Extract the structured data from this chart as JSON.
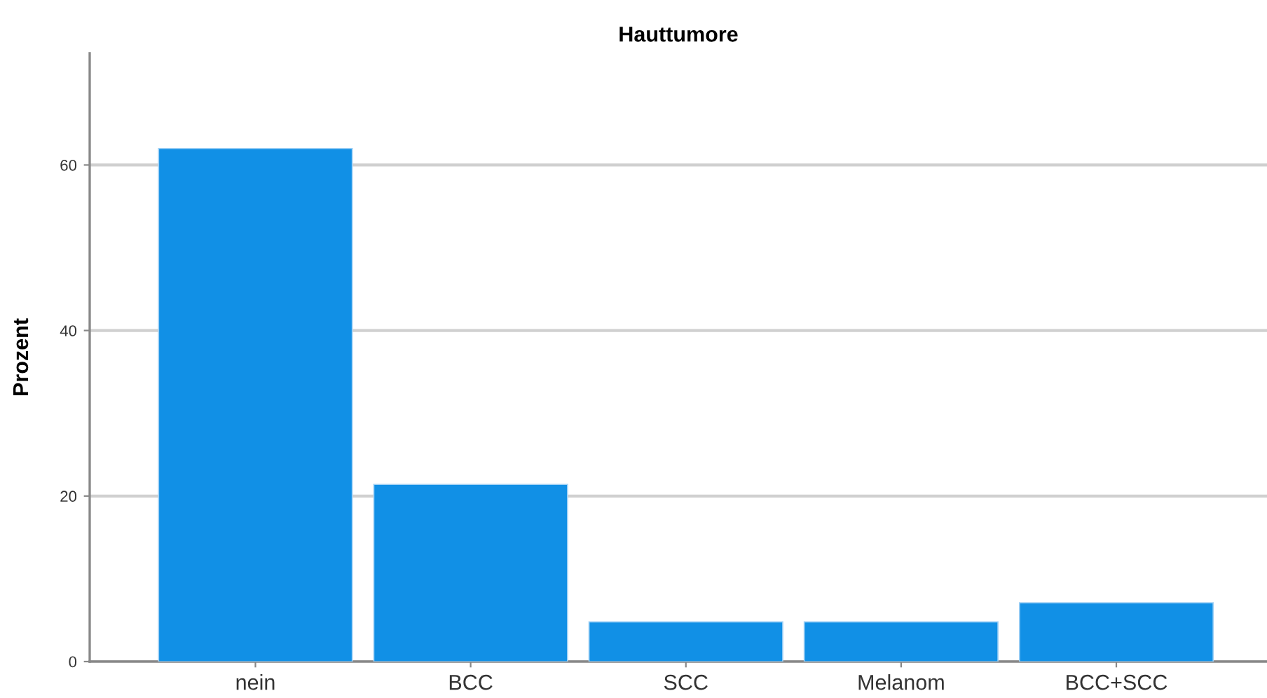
{
  "chart_data": {
    "type": "bar",
    "title": "Hauttumore",
    "ylabel": "Prozent",
    "categories": [
      "nein",
      "BCC",
      "SCC",
      "Melanom",
      "BCC+SCC"
    ],
    "values": [
      62,
      21.4,
      4.8,
      4.8,
      7.1
    ],
    "color": "#1190e6",
    "ylim": [
      0,
      73.5
    ],
    "yticks": [
      0,
      20,
      40,
      60
    ],
    "grid": "y"
  }
}
